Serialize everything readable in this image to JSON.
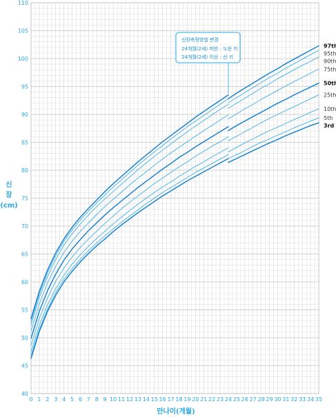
{
  "chart_data": {
    "type": "line",
    "xlabel": "만나이(개월)",
    "ylabel_lines": [
      "신",
      "장",
      "(cm)"
    ],
    "xlim": [
      0,
      35
    ],
    "ylim": [
      40,
      110
    ],
    "x_ticks": [
      0,
      1,
      2,
      3,
      4,
      5,
      6,
      7,
      8,
      9,
      10,
      11,
      12,
      13,
      14,
      15,
      16,
      17,
      18,
      19,
      20,
      21,
      22,
      23,
      24,
      25,
      26,
      27,
      28,
      29,
      30,
      31,
      32,
      33,
      34,
      35
    ],
    "y_ticks": [
      40,
      45,
      50,
      55,
      60,
      65,
      70,
      75,
      80,
      85,
      90,
      95,
      100,
      105,
      110
    ],
    "grid": true,
    "break_at_month": 24,
    "annotation": {
      "lines": [
        "신장측정방법 변경",
        "24개월(2세) 미만 : 누운 키",
        "24개월(2세) 이상 : 선 키"
      ],
      "at_month": 24
    },
    "series_names": [
      "3rd",
      "5th",
      "10th",
      "25th",
      "50th",
      "75th",
      "90th",
      "95th",
      "97th"
    ],
    "x": [
      0,
      1,
      2,
      3,
      4,
      5,
      6,
      7,
      8,
      9,
      10,
      11,
      12,
      13,
      14,
      15,
      16,
      17,
      18,
      19,
      20,
      21,
      22,
      23,
      24,
      24,
      25,
      26,
      27,
      28,
      29,
      30,
      31,
      32,
      33,
      34,
      35
    ],
    "series": [
      {
        "name": "3rd",
        "bold": true,
        "values": [
          46.3,
          51.1,
          54.7,
          57.6,
          60.0,
          61.9,
          63.6,
          65.1,
          66.5,
          67.7,
          69.0,
          70.2,
          71.3,
          72.4,
          73.4,
          74.4,
          75.4,
          76.3,
          77.2,
          78.1,
          78.9,
          79.7,
          80.5,
          81.3,
          82.1,
          81.4,
          82.1,
          82.8,
          83.5,
          84.2,
          84.9,
          85.5,
          86.2,
          86.8,
          87.4,
          88.0,
          88.5
        ]
      },
      {
        "name": "5th",
        "bold": false,
        "values": [
          46.8,
          51.5,
          55.1,
          58.1,
          60.5,
          62.4,
          64.1,
          65.6,
          67.0,
          68.3,
          69.5,
          70.7,
          71.8,
          72.9,
          74.0,
          75.0,
          76.0,
          76.9,
          77.8,
          78.7,
          79.6,
          80.4,
          81.2,
          82.0,
          82.8,
          82.1,
          82.8,
          83.5,
          84.3,
          85.0,
          85.6,
          86.3,
          86.9,
          87.6,
          88.2,
          88.8,
          89.4
        ]
      },
      {
        "name": "10th",
        "bold": false,
        "values": [
          47.5,
          52.2,
          55.9,
          58.8,
          61.2,
          63.2,
          64.9,
          66.4,
          67.8,
          69.1,
          70.4,
          71.6,
          72.8,
          73.9,
          75.0,
          76.0,
          77.0,
          77.9,
          78.9,
          79.8,
          80.7,
          81.5,
          82.4,
          83.2,
          84.0,
          83.3,
          84.1,
          84.9,
          85.6,
          86.4,
          87.1,
          87.7,
          88.4,
          89.1,
          89.7,
          90.4,
          91.0
        ]
      },
      {
        "name": "25th",
        "bold": false,
        "values": [
          48.6,
          53.4,
          57.1,
          60.1,
          62.5,
          64.5,
          66.2,
          67.7,
          69.1,
          70.5,
          71.8,
          73.1,
          74.3,
          75.4,
          76.5,
          77.6,
          78.6,
          79.6,
          80.6,
          81.5,
          82.5,
          83.4,
          84.3,
          85.1,
          86.0,
          85.3,
          86.1,
          86.9,
          87.7,
          88.5,
          89.3,
          90.0,
          90.7,
          91.4,
          92.1,
          92.8,
          93.5
        ]
      },
      {
        "name": "50th",
        "bold": true,
        "values": [
          49.9,
          54.7,
          58.4,
          61.4,
          63.9,
          65.9,
          67.6,
          69.2,
          70.6,
          72.0,
          73.3,
          74.5,
          75.7,
          76.9,
          78.0,
          79.1,
          80.2,
          81.2,
          82.3,
          83.2,
          84.2,
          85.1,
          86.0,
          86.9,
          87.8,
          87.1,
          88.0,
          88.8,
          89.6,
          90.4,
          91.2,
          92.0,
          92.7,
          93.5,
          94.2,
          94.9,
          95.6
        ]
      },
      {
        "name": "75th",
        "bold": false,
        "values": [
          51.2,
          56.0,
          59.8,
          62.8,
          65.3,
          67.3,
          69.1,
          70.6,
          72.1,
          73.5,
          74.8,
          76.1,
          77.4,
          78.6,
          79.7,
          80.9,
          82.0,
          83.1,
          84.1,
          85.1,
          86.1,
          87.1,
          88.0,
          89.0,
          89.9,
          89.2,
          90.1,
          91.0,
          91.8,
          92.7,
          93.5,
          94.3,
          95.1,
          95.9,
          96.6,
          97.4,
          98.1
        ]
      },
      {
        "name": "90th",
        "bold": false,
        "values": [
          52.3,
          57.2,
          60.9,
          64.0,
          66.6,
          68.6,
          70.4,
          72.0,
          73.5,
          74.9,
          76.2,
          77.5,
          78.8,
          80.1,
          81.3,
          82.5,
          83.6,
          84.7,
          85.8,
          86.9,
          87.9,
          88.9,
          89.9,
          90.9,
          91.8,
          91.1,
          92.0,
          92.9,
          93.8,
          94.7,
          95.5,
          96.4,
          97.2,
          98.0,
          98.8,
          99.5,
          100.3
        ]
      },
      {
        "name": "95th",
        "bold": false,
        "values": [
          52.9,
          57.8,
          61.6,
          64.7,
          67.3,
          69.3,
          71.1,
          72.7,
          74.2,
          75.6,
          77.0,
          78.3,
          79.6,
          80.9,
          82.1,
          83.3,
          84.4,
          85.6,
          86.7,
          87.8,
          88.8,
          89.8,
          90.8,
          91.8,
          92.8,
          92.1,
          93.0,
          93.9,
          94.8,
          95.7,
          96.6,
          97.4,
          98.3,
          99.1,
          99.9,
          100.7,
          101.5
        ]
      },
      {
        "name": "97th",
        "bold": true,
        "values": [
          53.4,
          58.3,
          62.1,
          65.2,
          67.7,
          69.8,
          71.6,
          73.2,
          74.7,
          76.2,
          77.6,
          78.9,
          80.2,
          81.5,
          82.7,
          83.9,
          85.1,
          86.2,
          87.3,
          88.4,
          89.5,
          90.5,
          91.5,
          92.5,
          93.5,
          92.8,
          93.8,
          94.7,
          95.6,
          96.5,
          97.4,
          98.2,
          99.1,
          99.9,
          100.7,
          101.5,
          102.3
        ]
      }
    ]
  }
}
